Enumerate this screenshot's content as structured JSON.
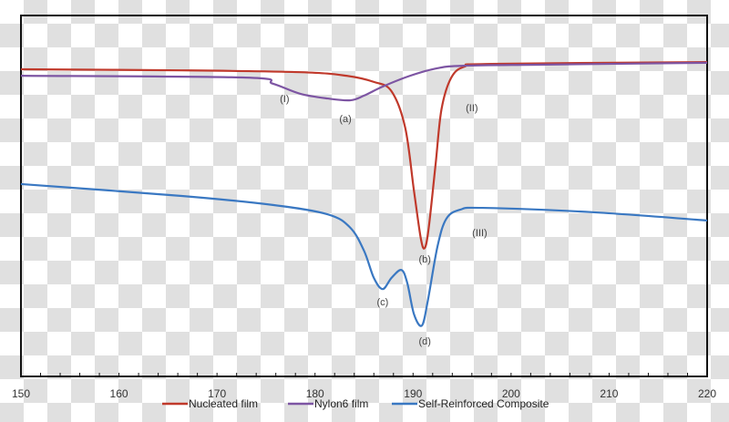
{
  "chart_data": {
    "type": "line",
    "title": "",
    "xlabel": "",
    "ylabel": "",
    "xlim": [
      150,
      220
    ],
    "ylim": [
      0,
      100
    ],
    "x_ticks": [
      "150",
      "160",
      "170",
      "180",
      "190",
      "200",
      "210",
      "220"
    ],
    "grid": false,
    "legend_position": "bottom",
    "series": [
      {
        "name": "Nucleated film",
        "color": "#c0392b",
        "x": [
          150,
          166.4,
          178.5,
          183.2,
          186,
          187.8,
          189.2,
          190.1,
          190.8,
          191.2,
          191.6,
          192.3,
          192.9,
          193.9,
          195.3,
          198,
          220
        ],
        "y": [
          85.1,
          84.8,
          84.3,
          83.3,
          81.6,
          79.0,
          68.9,
          51.3,
          38.1,
          35.6,
          41.2,
          58.8,
          74.0,
          82.8,
          85.9,
          86.6,
          87.1
        ]
      },
      {
        "name": "Nylon6 film",
        "color": "#7d55a3",
        "x": [
          150,
          172.9,
          175.7,
          178.5,
          181.3,
          183.6,
          185.0,
          186.9,
          189.7,
          192.5,
          195.3,
          203.6,
          220
        ],
        "y": [
          83.3,
          82.8,
          81.1,
          78.3,
          77.0,
          76.5,
          77.8,
          80.3,
          83.3,
          85.4,
          86.1,
          86.4,
          86.9
        ]
      },
      {
        "name": "Self-Reinforced Composite",
        "color": "#3a78c2",
        "x": [
          150,
          166.4,
          175.7,
          181.3,
          183.6,
          185.0,
          186.0,
          186.9,
          187.8,
          188.8,
          189.4,
          190.1,
          190.9,
          191.5,
          192.5,
          193.4,
          194.8,
          197.1,
          208.3,
          220
        ],
        "y": [
          53.3,
          50.0,
          47.5,
          44.9,
          41.2,
          34.8,
          27.3,
          24.2,
          27.3,
          29.5,
          26.0,
          17.2,
          14.1,
          20.9,
          36.1,
          43.7,
          46.2,
          46.7,
          45.5,
          43.2
        ]
      }
    ],
    "annotations": [
      {
        "text": "(I)",
        "x": 176.9,
        "y": 77.0
      },
      {
        "text": "(a)",
        "x": 183.1,
        "y": 71.5
      },
      {
        "text": "(II)",
        "x": 196.0,
        "y": 74.5
      },
      {
        "text": "(b)",
        "x": 191.2,
        "y": 32.6
      },
      {
        "text": "(III)",
        "x": 196.8,
        "y": 39.9
      },
      {
        "text": "(c)",
        "x": 186.9,
        "y": 20.7
      },
      {
        "text": "(d)",
        "x": 191.2,
        "y": 9.8
      }
    ]
  }
}
